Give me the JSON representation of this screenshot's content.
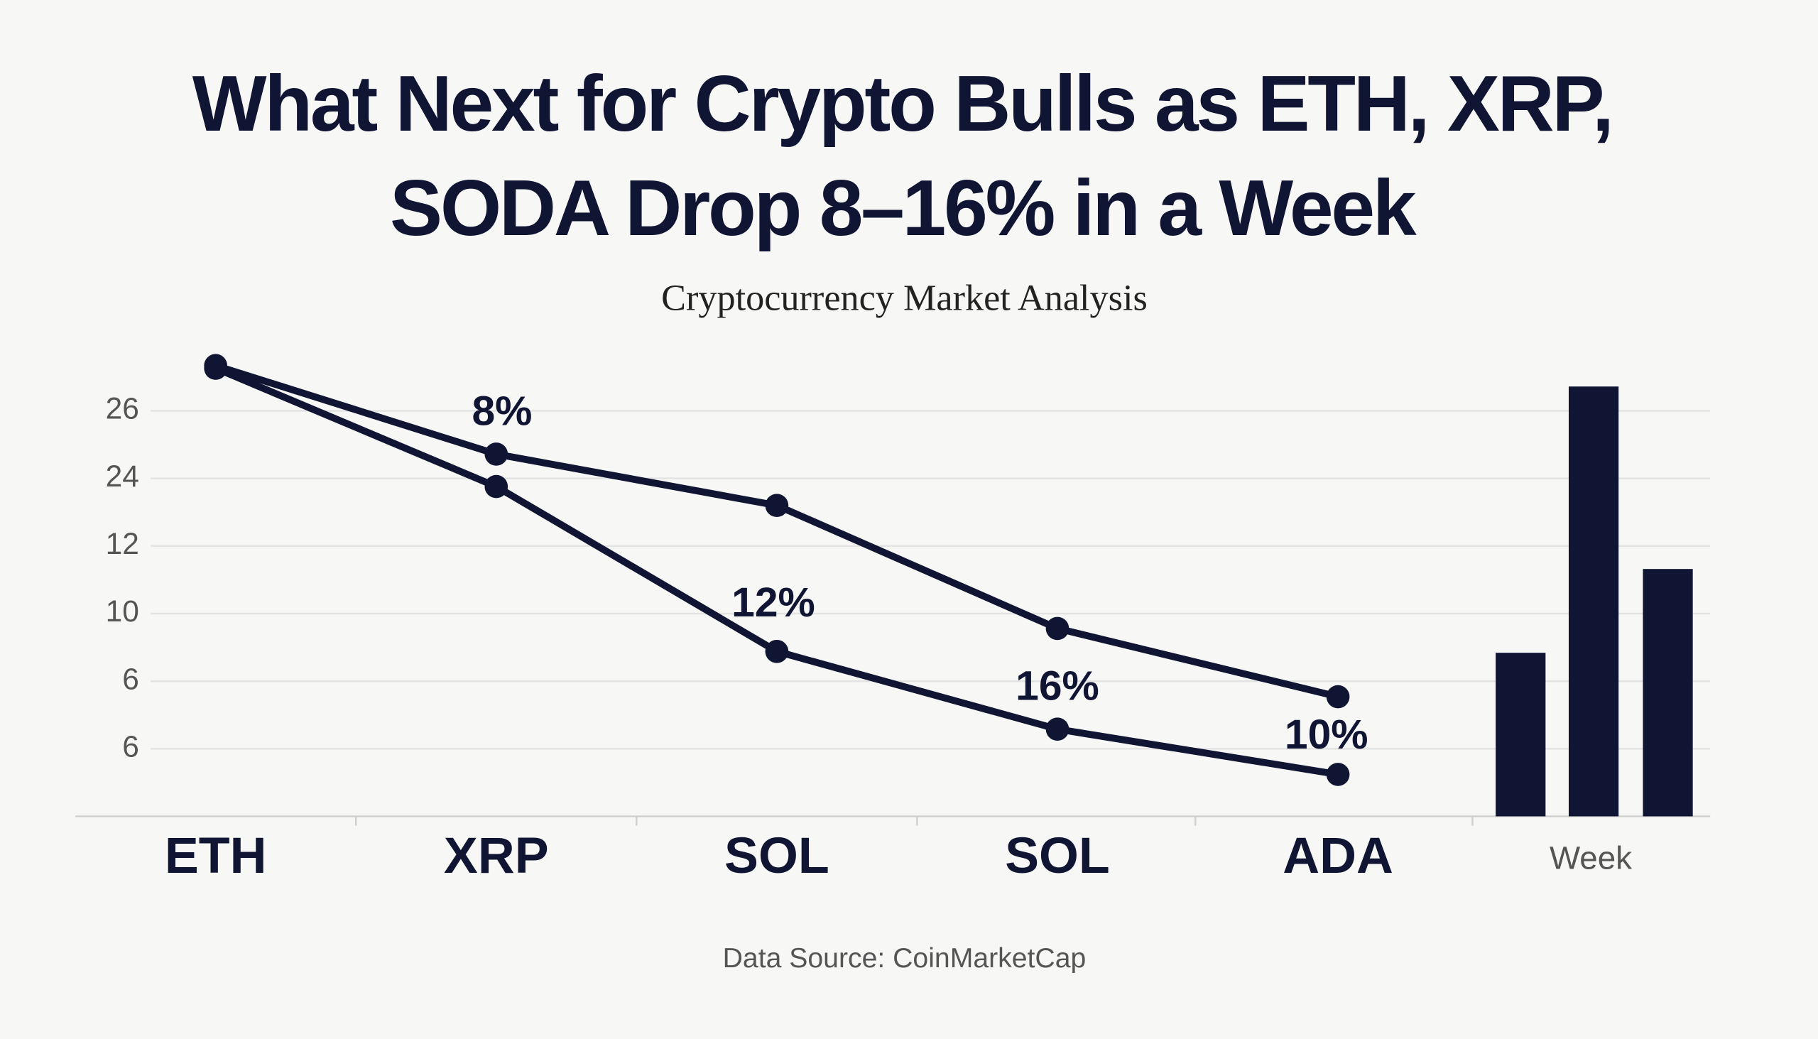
{
  "title": "What Next for Crypto Bulls as ETH, XRP,\nSODA Drop 8–16% in a Week",
  "subtitle": "Cryptocurrency Market Analysis",
  "source": "Data Source: CoinMarketCap",
  "chart_data": [
    {
      "type": "line",
      "categories": [
        "ETH",
        "XRP",
        "SOL",
        "SOL",
        "ADA"
      ],
      "series": [
        {
          "color": "#111534",
          "values": [
            6.67,
            5.36,
            4.6,
            2.78,
            1.77
          ]
        },
        {
          "color": "#111534",
          "values": [
            6.63,
            4.88,
            2.44,
            1.29,
            0.62
          ]
        }
      ],
      "annotations": [
        "8%",
        "12%",
        "16%",
        "10%"
      ],
      "ylim": [
        0,
        7
      ],
      "yticks": [
        {
          "value": 6,
          "label": "26"
        },
        {
          "value": 5,
          "label": "24"
        },
        {
          "value": 4,
          "label": "12"
        },
        {
          "value": 3,
          "label": "10"
        },
        {
          "value": 2,
          "label": "6"
        },
        {
          "value": 1,
          "label": "6"
        }
      ],
      "grid": true
    },
    {
      "type": "bar",
      "xlabel": "Week",
      "values": [
        2.42,
        6.36,
        3.66
      ],
      "color": "#111534",
      "ylim": [
        0,
        7
      ]
    }
  ]
}
